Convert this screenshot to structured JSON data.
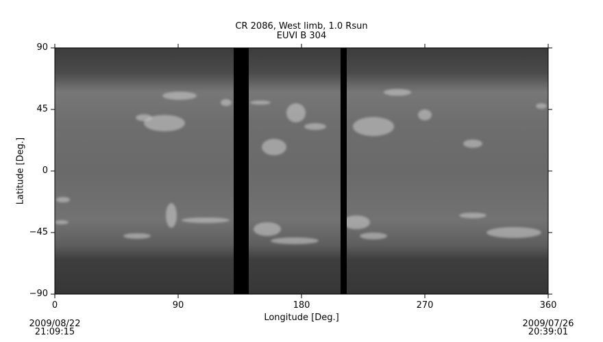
{
  "chart_data": {
    "type": "heatmap",
    "title": "CR 2086, West limb, 1.0 Rsun",
    "subtitle": "EUVI B 304",
    "xlabel": "Longitude [Deg.]",
    "ylabel": "Latitude [Deg.]",
    "xlim": [
      0,
      360
    ],
    "ylim": [
      -90,
      90
    ],
    "xticks": [
      0,
      90,
      180,
      270,
      360
    ],
    "yticks": [
      -90,
      -45,
      0,
      45,
      90
    ],
    "ytick_labels": [
      "−90",
      "−45",
      "0",
      "45",
      "90"
    ],
    "colormap": "grayscale",
    "data_gaps_longitude": [
      [
        130.5,
        141.5
      ],
      [
        208.5,
        213
      ]
    ],
    "start_time": {
      "date": "2009/08/22",
      "time": "21:09:15"
    },
    "end_time": {
      "date": "2009/07/26",
      "time": "20:39:01"
    }
  }
}
